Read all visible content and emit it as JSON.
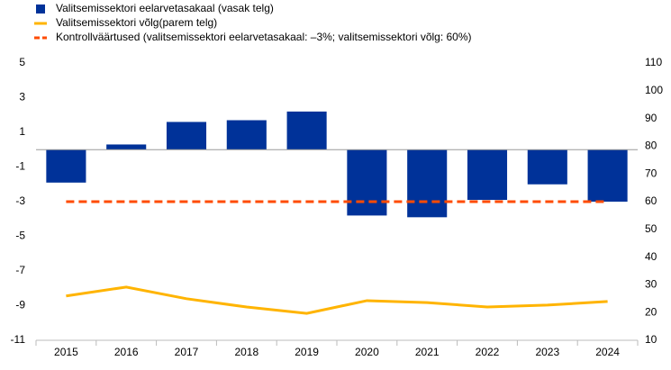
{
  "chart_data": {
    "type": "bar-line",
    "categories": [
      "2015",
      "2016",
      "2017",
      "2018",
      "2019",
      "2020",
      "2021",
      "2022",
      "2023",
      "2024"
    ],
    "series": [
      {
        "name": "Valitsemissektori eelarvetasakaal (vasak telg)",
        "type": "bar",
        "color": "#003299",
        "values": [
          -1.9,
          0.3,
          1.6,
          1.7,
          2.2,
          -3.8,
          -3.9,
          -2.9,
          -2.0,
          -3.0
        ]
      },
      {
        "name": "Valitsemissektori võlg(parem telg)",
        "type": "line",
        "axis": "y2",
        "color": "#ffb400",
        "values": [
          26,
          29.2,
          25,
          22,
          19.7,
          24.3,
          23.6,
          22,
          22.7,
          24
        ]
      },
      {
        "name": "Kontrollväärtused (valitsemissektori eelarvetasakaal: –3%; valitsemissektori võlg: 60%)",
        "type": "dashed-line",
        "color": "#ff4b00",
        "values": [
          -3,
          -3,
          -3,
          -3,
          -3,
          -3,
          -3,
          -3,
          -3,
          -3
        ]
      }
    ],
    "ylim": [
      -11,
      5
    ],
    "yticks": [
      5,
      3,
      1,
      -1,
      -3,
      -5,
      -7,
      -9,
      -11
    ],
    "y2lim": [
      10,
      110
    ],
    "y2ticks": [
      110,
      100,
      90,
      80,
      70,
      60,
      50,
      40,
      30,
      20,
      10
    ]
  }
}
